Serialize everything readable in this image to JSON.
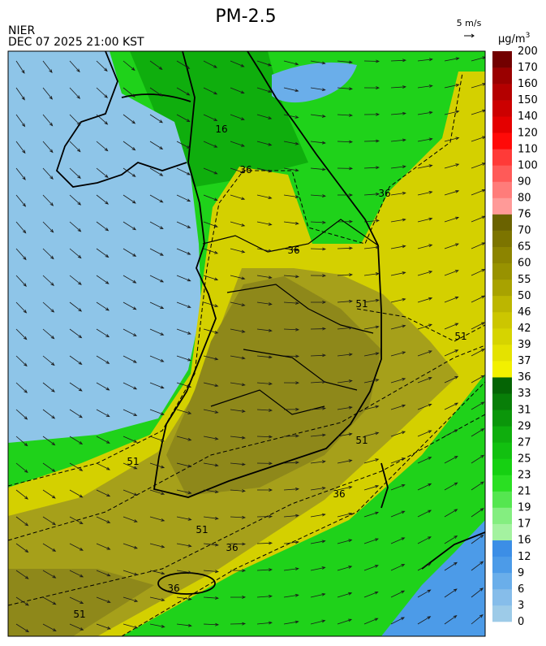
{
  "title": "PM-2.5",
  "source": "NIER",
  "datetime": "DEC 07 2025 21:00 KST",
  "wind_scale": "5 m/s",
  "unit": "μg/m",
  "unit_exponent": "3",
  "colorbar": {
    "ticks": [
      0,
      3,
      6,
      9,
      12,
      16,
      17,
      19,
      21,
      23,
      25,
      27,
      29,
      31,
      33,
      36,
      37,
      39,
      42,
      46,
      50,
      55,
      60,
      65,
      70,
      76,
      80,
      90,
      100,
      110,
      120,
      140,
      150,
      160,
      170,
      200
    ],
    "colors": [
      "#9dcbe8",
      "#86bdea",
      "#6aaeea",
      "#4c9be8",
      "#3c8ee6",
      "#a4f2a0",
      "#84ee80",
      "#55e650",
      "#2adf22",
      "#16d012",
      "#12c010",
      "#0fae0d",
      "#0b960a",
      "#087e08",
      "#056405",
      "#f2f000",
      "#e4e200",
      "#d6d400",
      "#ccc600",
      "#bcb600",
      "#a8a200",
      "#989200",
      "#8c8400",
      "#7c7400",
      "#6a6200",
      "#ff9a98",
      "#ff7c7a",
      "#ff5a58",
      "#ff3a38",
      "#ff0a08",
      "#e40000",
      "#cc0000",
      "#b40000",
      "#9a0000",
      "#720000"
    ]
  },
  "contour_labels": [
    "16",
    "36",
    "36",
    "36",
    "51",
    "51",
    "51",
    "51",
    "36",
    "51",
    "36",
    "36",
    "51"
  ]
}
